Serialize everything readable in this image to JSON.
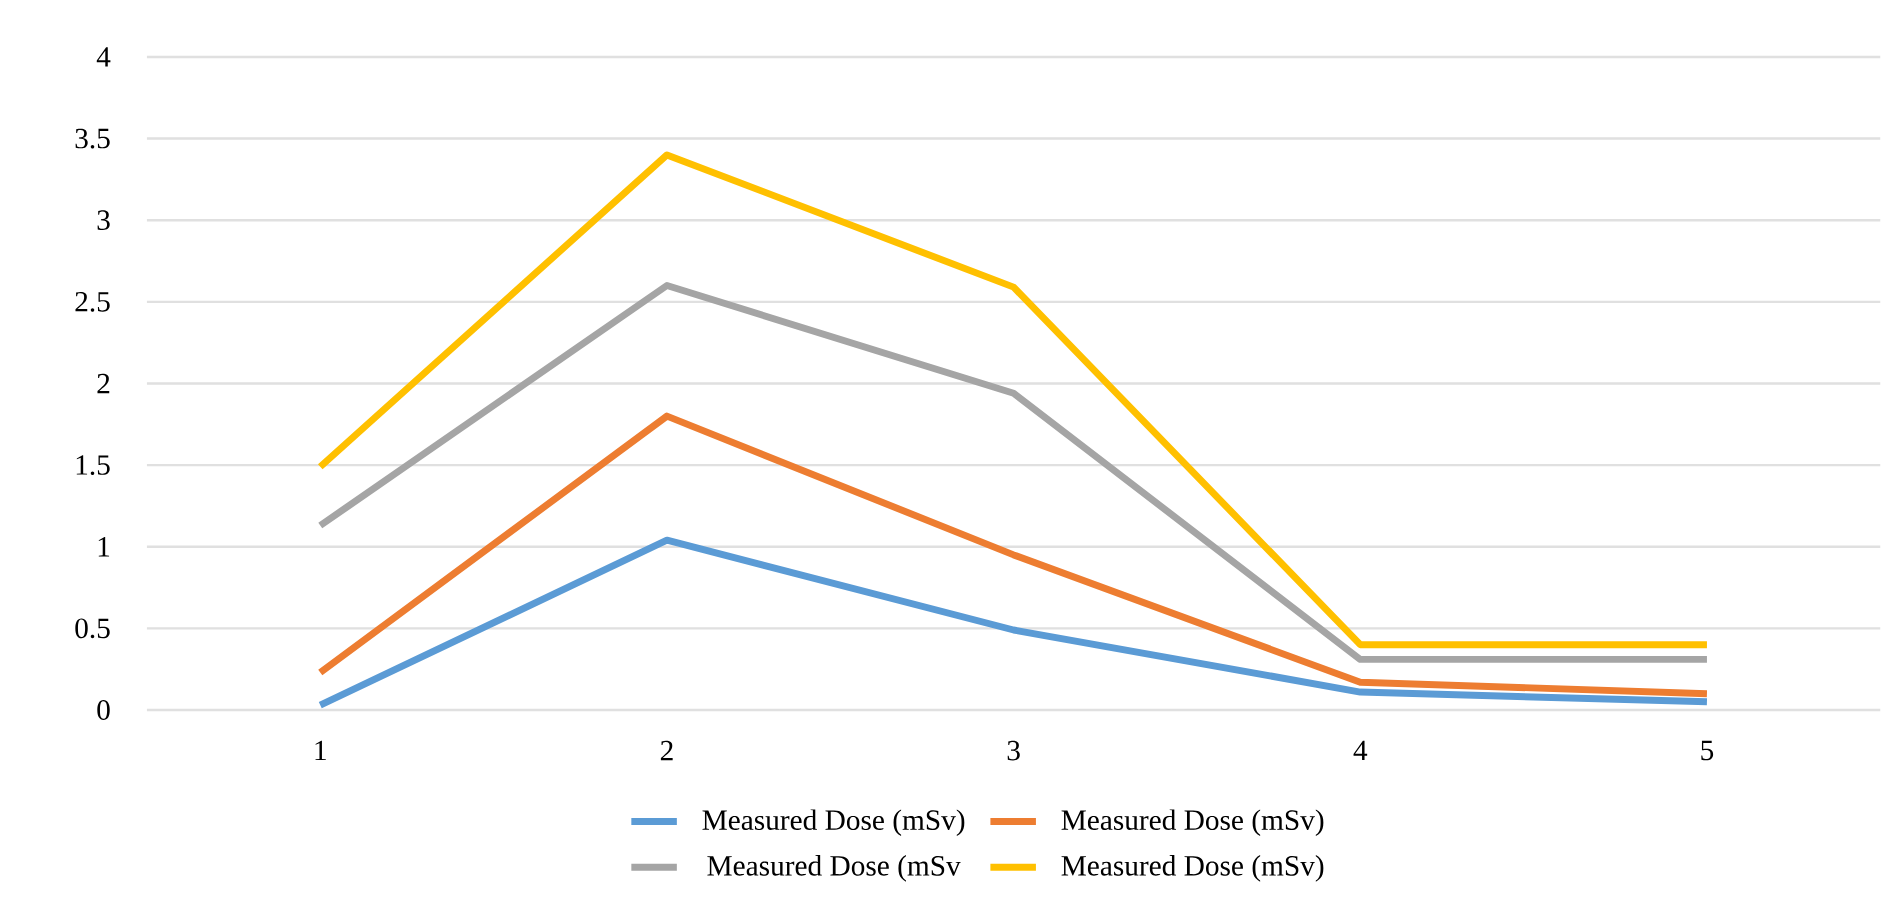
{
  "chart_data": {
    "type": "line",
    "categories": [
      "1",
      "2",
      "3",
      "4",
      "5"
    ],
    "series": [
      {
        "name": "Measured Dose (mSv)",
        "color": "#5b9bd5",
        "values": [
          0.03,
          1.04,
          0.49,
          0.11,
          0.05
        ]
      },
      {
        "name": "Measured Dose (mSv)",
        "color": "#ed7d31",
        "values": [
          0.23,
          1.8,
          0.95,
          0.17,
          0.1
        ]
      },
      {
        "name": "Measured Dose (mSv",
        "color": "#a5a5a5",
        "values": [
          1.13,
          2.6,
          1.94,
          0.31,
          0.31
        ]
      },
      {
        "name": "Measured Dose (mSv)",
        "color": "#ffc000",
        "values": [
          1.49,
          3.4,
          2.59,
          0.4,
          0.4
        ]
      }
    ],
    "ylim": [
      0,
      4
    ],
    "yticks": [
      0,
      0.5,
      1,
      1.5,
      2,
      2.5,
      3,
      3.5,
      4
    ],
    "grid": "y",
    "legend": "bottom",
    "marker": "none",
    "line_style": "solid"
  }
}
